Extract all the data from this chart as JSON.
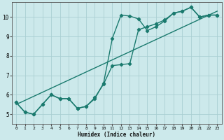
{
  "xlabel": "Humidex (Indice chaleur)",
  "ylabel": "",
  "bg_color": "#cce9eb",
  "grid_color": "#aacfd2",
  "line_color": "#1a7a6e",
  "xlim": [
    -0.5,
    23.5
  ],
  "ylim": [
    4.5,
    10.75
  ],
  "xticks": [
    0,
    1,
    2,
    3,
    4,
    5,
    6,
    7,
    8,
    9,
    10,
    11,
    12,
    13,
    14,
    15,
    16,
    17,
    18,
    19,
    20,
    21,
    22,
    23
  ],
  "yticks": [
    5,
    6,
    7,
    8,
    9,
    10
  ],
  "series1_x": [
    0,
    1,
    2,
    3,
    4,
    5,
    6,
    7,
    8,
    9,
    10,
    11,
    12,
    13,
    14,
    15,
    16,
    17,
    18,
    19,
    20,
    21,
    22,
    23
  ],
  "series1_y": [
    5.6,
    5.1,
    5.0,
    5.5,
    6.0,
    5.8,
    5.8,
    5.3,
    5.4,
    5.8,
    6.6,
    8.9,
    10.1,
    10.05,
    9.9,
    9.3,
    9.5,
    9.8,
    10.2,
    10.3,
    10.5,
    10.0,
    10.1,
    10.1
  ],
  "series2_x": [
    0,
    1,
    2,
    3,
    4,
    5,
    6,
    7,
    8,
    9,
    10,
    11,
    12,
    13,
    14,
    15,
    16,
    17,
    18,
    19,
    20,
    21,
    22,
    23
  ],
  "series2_y": [
    5.6,
    5.1,
    5.0,
    5.5,
    6.0,
    5.8,
    5.8,
    5.3,
    5.4,
    5.85,
    6.55,
    7.5,
    7.55,
    7.6,
    9.35,
    9.5,
    9.65,
    9.85,
    10.2,
    10.3,
    10.5,
    10.0,
    10.1,
    10.1
  ],
  "trend_x": [
    0,
    23
  ],
  "trend_y": [
    5.5,
    10.3
  ],
  "marker": "D",
  "markersize": 2.2,
  "linewidth": 1.0
}
